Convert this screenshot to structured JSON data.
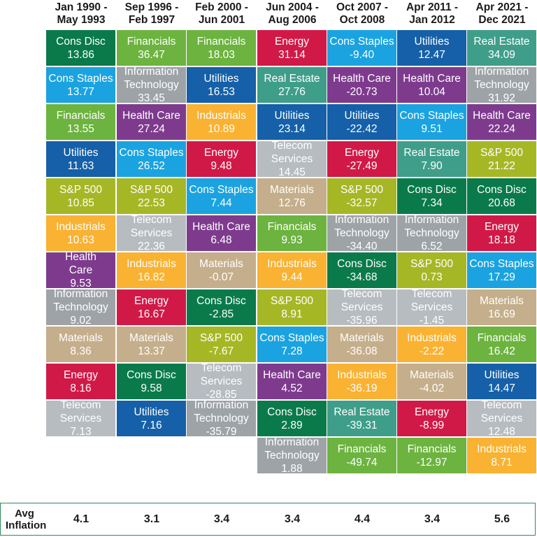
{
  "chart_data": {
    "type": "table",
    "periods": [
      {
        "line1": "Jan 1990 -",
        "line2": "May 1993",
        "inflation": "4.1",
        "sectors": [
          {
            "name": "Cons Disc",
            "value": "13.86"
          },
          {
            "name": "Cons Staples",
            "value": "13.77"
          },
          {
            "name": "Financials",
            "value": "13.55"
          },
          {
            "name": "Utilities",
            "value": "11.63"
          },
          {
            "name": "S&P 500",
            "value": "10.85"
          },
          {
            "name": "Industrials",
            "value": "10.63"
          },
          {
            "name": "Health\nCare",
            "value": "9.53"
          },
          {
            "name": "Information\nTechnology",
            "value": "9.02"
          },
          {
            "name": "Materials",
            "value": "8.36"
          },
          {
            "name": "Energy",
            "value": "8.16"
          },
          {
            "name": "Telecom\nServices",
            "value": "7.13"
          }
        ]
      },
      {
        "line1": "Sep 1996 -",
        "line2": "Feb 1997",
        "inflation": "3.1",
        "sectors": [
          {
            "name": "Financials",
            "value": "36.47"
          },
          {
            "name": "Information\nTechnology",
            "value": "33.45"
          },
          {
            "name": "Health Care",
            "value": "27.24"
          },
          {
            "name": "Cons Staples",
            "value": "26.52"
          },
          {
            "name": "S&P 500",
            "value": "22.53"
          },
          {
            "name": "Telecom\nServices",
            "value": "22.36"
          },
          {
            "name": "Industrials",
            "value": "16.82"
          },
          {
            "name": "Energy",
            "value": "16.67"
          },
          {
            "name": "Materials",
            "value": "13.37"
          },
          {
            "name": "Cons Disc",
            "value": "9.58"
          },
          {
            "name": "Utilities",
            "value": "7.16"
          }
        ]
      },
      {
        "line1": "Feb 2000 -",
        "line2": "Jun 2001",
        "inflation": "3.4",
        "sectors": [
          {
            "name": "Financials",
            "value": "18.03"
          },
          {
            "name": "Utilities",
            "value": "16.53"
          },
          {
            "name": "Industrials",
            "value": "10.89"
          },
          {
            "name": "Energy",
            "value": "9.48"
          },
          {
            "name": "Cons Staples",
            "value": "7.44"
          },
          {
            "name": "Health Care",
            "value": "6.48"
          },
          {
            "name": "Materials",
            "value": "-0.07"
          },
          {
            "name": "Cons Disc",
            "value": "-2.85"
          },
          {
            "name": "S&P 500",
            "value": "-7.67"
          },
          {
            "name": "Telecom\nServices",
            "value": "-28.85"
          },
          {
            "name": "Information\nTechnology",
            "value": "-35.79"
          }
        ]
      },
      {
        "line1": "Jun 2004 -",
        "line2": "Aug 2006",
        "inflation": "3.4",
        "sectors": [
          {
            "name": "Energy",
            "value": "31.14"
          },
          {
            "name": "Real Estate",
            "value": "27.76"
          },
          {
            "name": "Utilities",
            "value": "23.14"
          },
          {
            "name": "Telecom\nServices",
            "value": "14.45"
          },
          {
            "name": "Materials",
            "value": "12.76"
          },
          {
            "name": "Financials",
            "value": "9.93"
          },
          {
            "name": "Industrials",
            "value": "9.44"
          },
          {
            "name": "S&P 500",
            "value": "8.91"
          },
          {
            "name": "Cons Staples",
            "value": "7.28"
          },
          {
            "name": "Health Care",
            "value": "4.52"
          },
          {
            "name": "Cons Disc",
            "value": "2.89"
          },
          {
            "name": "Information\nTechnology",
            "value": "1.88"
          }
        ]
      },
      {
        "line1": "Oct 2007 -",
        "line2": "Oct 2008",
        "inflation": "4.4",
        "sectors": [
          {
            "name": "Cons Staples",
            "value": "-9.40"
          },
          {
            "name": "Health Care",
            "value": "-20.73"
          },
          {
            "name": "Utilities",
            "value": "-22.42"
          },
          {
            "name": "Energy",
            "value": "-27.49"
          },
          {
            "name": "S&P 500",
            "value": "-32.57"
          },
          {
            "name": "Information\nTechnology",
            "value": "-34.40"
          },
          {
            "name": "Cons Disc",
            "value": "-34.68"
          },
          {
            "name": "Telecom\nServices",
            "value": "-35.96"
          },
          {
            "name": "Materials",
            "value": "-36.08"
          },
          {
            "name": "Industrials",
            "value": "-36.19"
          },
          {
            "name": "Real Estate",
            "value": "-39.31"
          },
          {
            "name": "Financials",
            "value": "-49.74"
          }
        ]
      },
      {
        "line1": "Apr 2011 -",
        "line2": "Jan 2012",
        "inflation": "3.4",
        "sectors": [
          {
            "name": "Utilities",
            "value": "12.47"
          },
          {
            "name": "Health Care",
            "value": "10.04"
          },
          {
            "name": "Cons Staples",
            "value": "9.51"
          },
          {
            "name": "Real Estate",
            "value": "7.90"
          },
          {
            "name": "Cons Disc",
            "value": "7.34"
          },
          {
            "name": "Information\nTechnology",
            "value": "6.52"
          },
          {
            "name": "S&P 500",
            "value": "0.73"
          },
          {
            "name": "Telecom\nServices",
            "value": "-1.45"
          },
          {
            "name": "Industrials",
            "value": "-2.22"
          },
          {
            "name": "Materials",
            "value": "-4.02"
          },
          {
            "name": "Energy",
            "value": "-8.99"
          },
          {
            "name": "Financials",
            "value": "-12.97"
          }
        ]
      },
      {
        "line1": "Apr 2021 -",
        "line2": "Dec 2021",
        "inflation": "5.6",
        "sectors": [
          {
            "name": "Real Estate",
            "value": "34.09"
          },
          {
            "name": "Information\nTechnology",
            "value": "31.92"
          },
          {
            "name": "Health Care",
            "value": "22.24"
          },
          {
            "name": "S&P 500",
            "value": "21.22"
          },
          {
            "name": "Cons Disc",
            "value": "20.68"
          },
          {
            "name": "Energy",
            "value": "18.18"
          },
          {
            "name": "Cons Staples",
            "value": "17.29"
          },
          {
            "name": "Materials",
            "value": "16.69"
          },
          {
            "name": "Financials",
            "value": "16.42"
          },
          {
            "name": "Utilities",
            "value": "14.47"
          },
          {
            "name": "Telecom\nServices",
            "value": "12.48"
          },
          {
            "name": "Industrials",
            "value": "8.71"
          }
        ]
      }
    ],
    "inflation_label": "Avg\nInflation"
  },
  "colors": {
    "Cons Disc": "#0b7a4b",
    "Cons Staples": "#1aa3e0",
    "Financials": "#6cb33f",
    "Utilities": "#1560a8",
    "S&P 500": "#a6b726",
    "Industrials": "#f9b232",
    "Health Care": "#7e3b8e",
    "Information Technology": "#9ea3a8",
    "Materials": "#c5ae8b",
    "Energy": "#d11947",
    "Telecom Services": "#b7bcc1",
    "Real Estate": "#3f9e8a",
    "border": "#2e8b57"
  }
}
